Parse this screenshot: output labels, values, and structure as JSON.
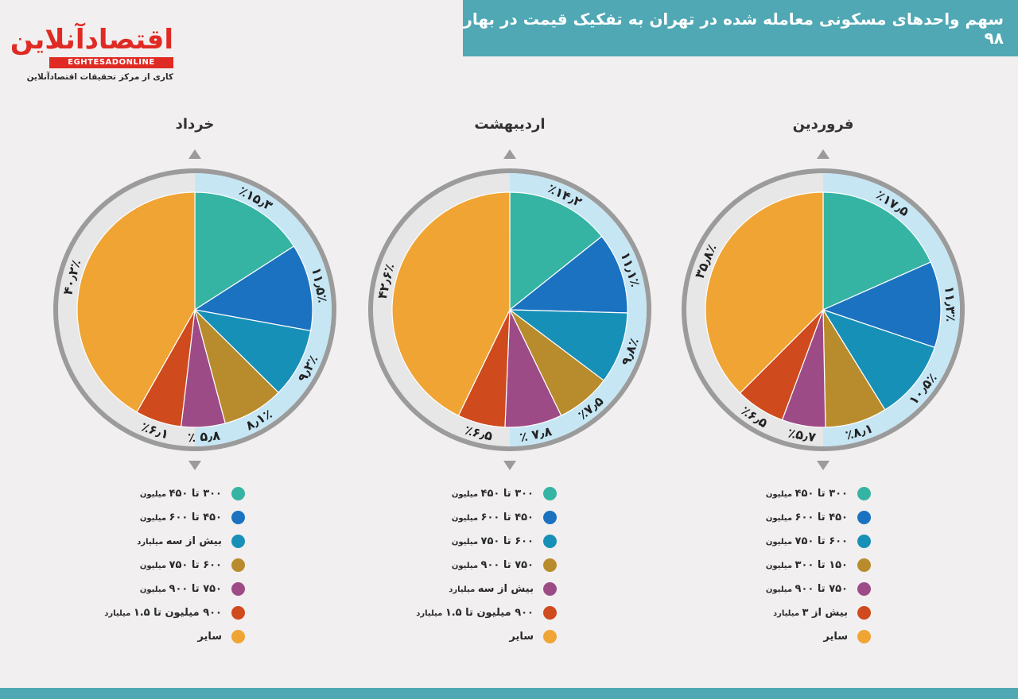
{
  "header": {
    "title": "سهم واحدهای مسکونی معامله شده در تهران به تفکیک قیمت در بهار ۹۸"
  },
  "logo": {
    "name": "اقتصادآنلاین",
    "latin": "EGHTESADONLINE",
    "subtitle": "کاری از مرکز تحقیقات اقتصادآنلاین"
  },
  "colors": {
    "teal": "#36b4a3",
    "blue": "#1a72c0",
    "cyan": "#1790b8",
    "ochre": "#b88c2c",
    "purple": "#9d4b86",
    "red": "#cf4a1d",
    "orange": "#f0a434"
  },
  "chart_data": [
    {
      "type": "pie",
      "title": "خرداد",
      "slices": [
        {
          "label": "۳۰۰ تا ۴۵۰",
          "unit": "میلیون",
          "value": 15.3,
          "display": "٪۱۵٫۳",
          "color": "#36b4a3"
        },
        {
          "label": "۴۵۰ تا ۶۰۰",
          "unit": "میلیون",
          "value": 11.5,
          "display": "۱۱٫۵٪",
          "color": "#1a72c0"
        },
        {
          "label": "بیش از سه",
          "unit": "میلیارد",
          "value": 9.2,
          "display": "۹٫۲٪",
          "color": "#1790b8"
        },
        {
          "label": "۶۰۰ تا ۷۵۰",
          "unit": "میلیون",
          "value": 8.1,
          "display": "۸٫۱٪",
          "color": "#b88c2c"
        },
        {
          "label": "۷۵۰ تا ۹۰۰",
          "unit": "میلیون",
          "value": 5.8,
          "display": "٪ ۵٫۸",
          "color": "#9d4b86"
        },
        {
          "label": "۹۰۰ میلیون تا ۱.۵",
          "unit": "میلیارد",
          "value": 6.1,
          "display": "٪۶٫۱",
          "color": "#cf4a1d"
        },
        {
          "label": "سایر",
          "unit": "",
          "value": 40.2,
          "display": "۴۰٫۲٪",
          "color": "#f0a434"
        }
      ]
    },
    {
      "type": "pie",
      "title": "اردیبهشت",
      "slices": [
        {
          "label": "۳۰۰ تا ۴۵۰",
          "unit": "میلیون",
          "value": 14.2,
          "display": "٪۱۴٫۲",
          "color": "#36b4a3"
        },
        {
          "label": "۴۵۰ تا ۶۰۰",
          "unit": "میلیون",
          "value": 11.1,
          "display": "۱۱٫۱٪",
          "color": "#1a72c0"
        },
        {
          "label": "۶۰۰ تا ۷۵۰",
          "unit": "میلیون",
          "value": 9.8,
          "display": "۹٫۸٪",
          "color": "#1790b8"
        },
        {
          "label": "۷۵۰ تا ۹۰۰",
          "unit": "میلیون",
          "value": 7.5,
          "display": "٪۷٫۵",
          "color": "#b88c2c"
        },
        {
          "label": "بیش از سه",
          "unit": "میلیارد",
          "value": 7.8,
          "display": "٪ ۷٫۸",
          "color": "#9d4b86"
        },
        {
          "label": "۹۰۰ میلیون تا ۱.۵",
          "unit": "میلیارد",
          "value": 6.5,
          "display": "٪۶٫۵",
          "color": "#cf4a1d"
        },
        {
          "label": "سایر",
          "unit": "",
          "value": 42.6,
          "display": "۴۲٫۶٪",
          "color": "#f0a434"
        }
      ]
    },
    {
      "type": "pie",
      "title": "فروردین",
      "slices": [
        {
          "label": "۳۰۰ تا ۴۵۰",
          "unit": "میلیون",
          "value": 17.5,
          "display": "٪۱۷٫۵",
          "color": "#36b4a3"
        },
        {
          "label": "۴۵۰ تا ۶۰۰",
          "unit": "میلیون",
          "value": 11.3,
          "display": "۱۱٫۳٪",
          "color": "#1a72c0"
        },
        {
          "label": "۶۰۰ تا ۷۵۰",
          "unit": "میلیون",
          "value": 10.5,
          "display": "۱۰٫۵٪",
          "color": "#1790b8"
        },
        {
          "label": "۱۵۰ تا ۳۰۰",
          "unit": "میلیون",
          "value": 8.1,
          "display": "٪۸٫۱",
          "color": "#b88c2c"
        },
        {
          "label": "۷۵۰ تا ۹۰۰",
          "unit": "میلیون",
          "value": 5.7,
          "display": "٪۵٫۷",
          "color": "#9d4b86"
        },
        {
          "label": "بیش از ۳",
          "unit": "میلیارد",
          "value": 6.5,
          "display": "٪۶٫۵",
          "color": "#cf4a1d"
        },
        {
          "label": "سایر",
          "unit": "",
          "value": 35.8,
          "display": "۳۵٫۸٪",
          "color": "#f0a434"
        }
      ]
    }
  ]
}
